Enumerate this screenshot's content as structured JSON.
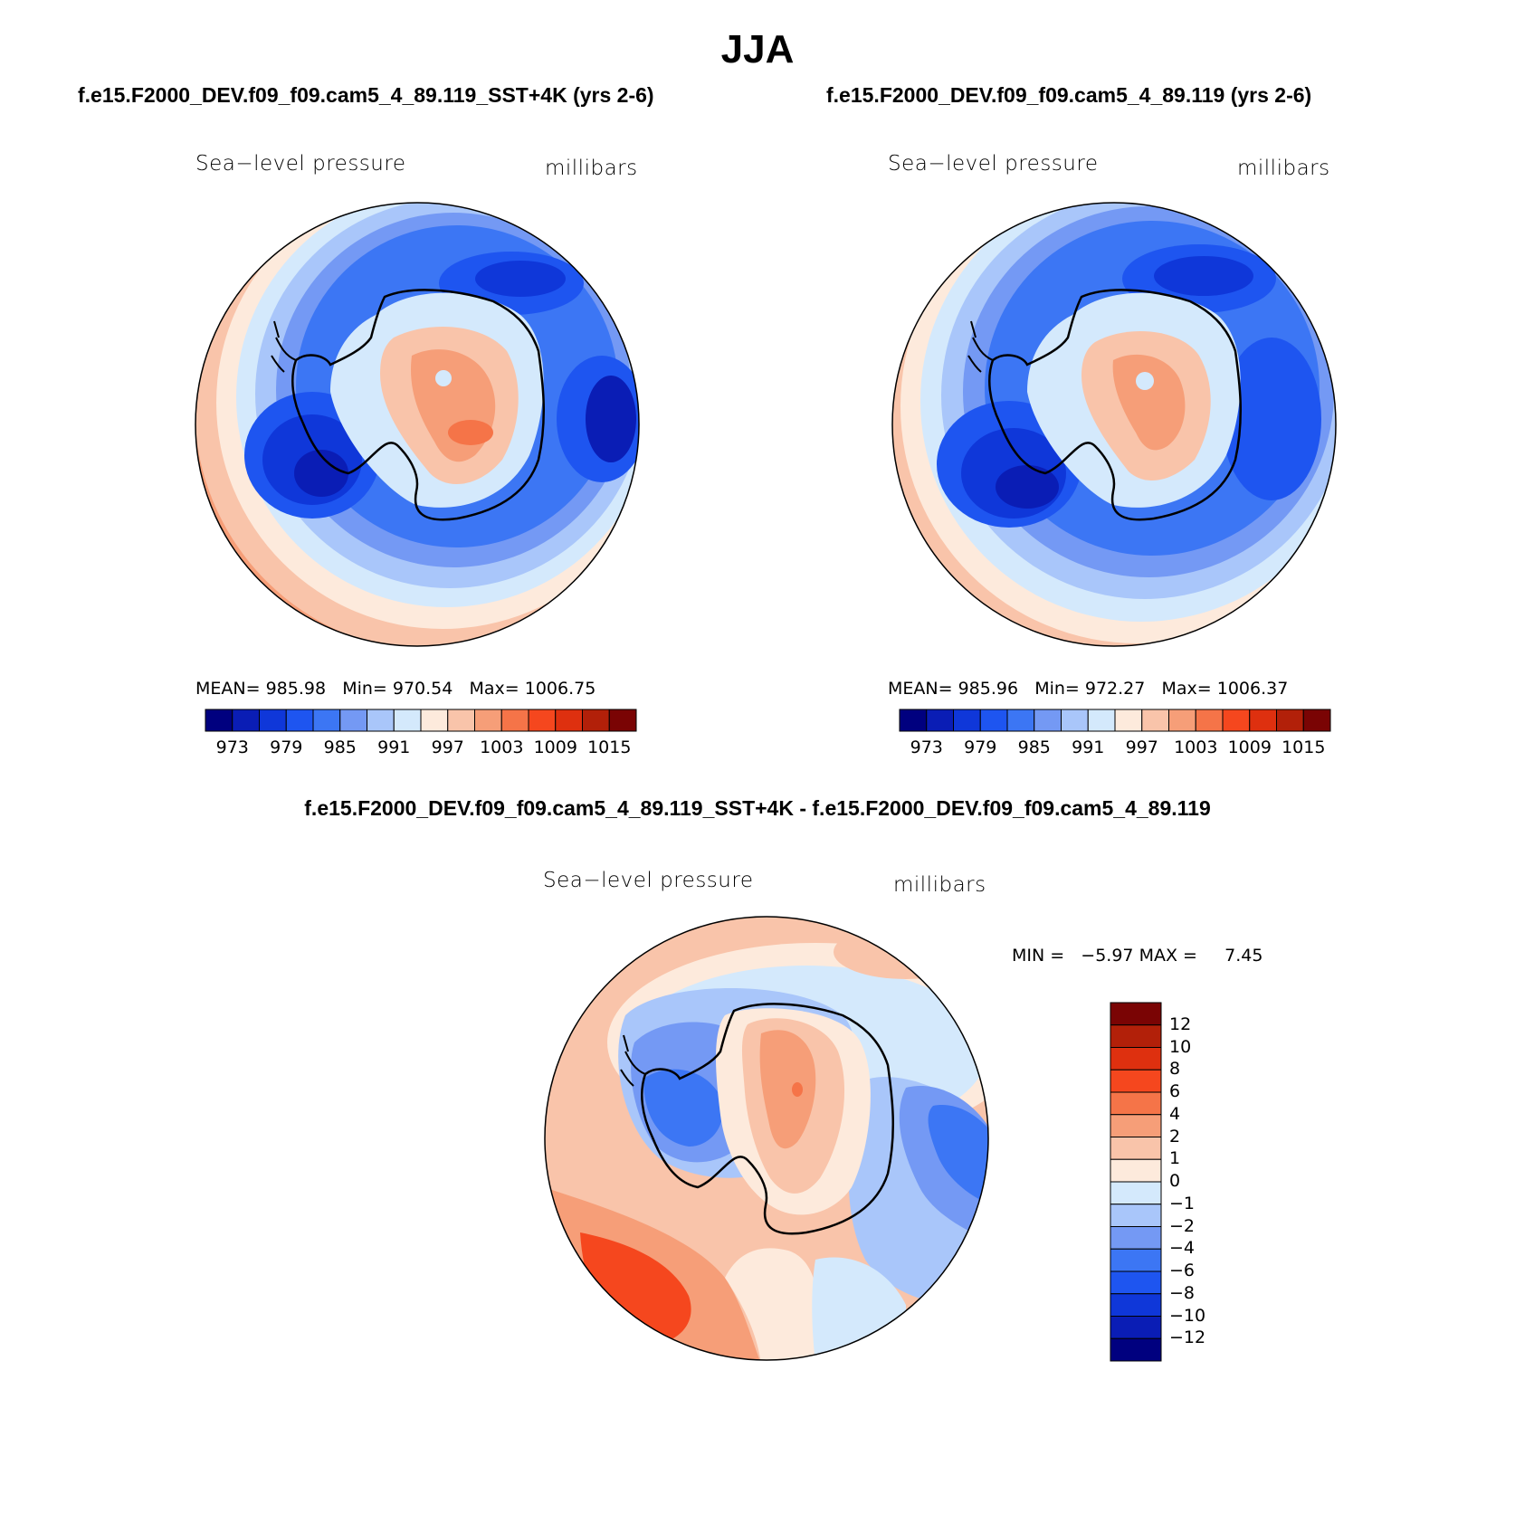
{
  "title": "JJA",
  "panels": [
    {
      "case_title": "f.e15.F2000_DEV.f09_f09.cam5_4_89.119_SST+4K (yrs 2-6)",
      "variable": "Sea−level pressure",
      "units": "millibars",
      "stats": {
        "mean_label": "MEAN=",
        "mean": "985.98",
        "min_label": "Min=",
        "min": "970.54",
        "max_label": "Max=",
        "max": "1006.75"
      }
    },
    {
      "case_title": "f.e15.F2000_DEV.f09_f09.cam5_4_89.119 (yrs 2-6)",
      "variable": "Sea−level pressure",
      "units": "millibars",
      "stats": {
        "mean_label": "MEAN=",
        "mean": "985.96",
        "min_label": "Min=",
        "min": "972.27",
        "max_label": "Max=",
        "max": "1006.37"
      }
    }
  ],
  "abs_colorbar": {
    "colors": [
      "#00007f",
      "#0a1db5",
      "#0f37d9",
      "#1e55f0",
      "#3c76f4",
      "#7499f4",
      "#a9c6fa",
      "#d4e9fc",
      "#fdeadc",
      "#f9c4aa",
      "#f69e78",
      "#f57448",
      "#f5471e",
      "#de300f",
      "#b22009",
      "#7a0404"
    ],
    "labels": [
      "973",
      "979",
      "985",
      "991",
      "997",
      "1003",
      "1009",
      "1015"
    ]
  },
  "diff": {
    "title": "f.e15.F2000_DEV.f09_f09.cam5_4_89.119_SST+4K - f.e15.F2000_DEV.f09_f09.cam5_4_89.119",
    "variable": "Sea−level pressure",
    "units": "millibars",
    "stats": {
      "min_label": "MIN =",
      "min": "−5.97",
      "max_label": "MAX =",
      "max": "7.45"
    },
    "colorbar": {
      "colors": [
        "#7a0404",
        "#b22009",
        "#de300f",
        "#f5471e",
        "#f57448",
        "#f69e78",
        "#f9c4aa",
        "#fdeadc",
        "#d4e9fc",
        "#a9c6fa",
        "#7499f4",
        "#3c76f4",
        "#1e55f0",
        "#0f37d9",
        "#0a1db5",
        "#00007f"
      ],
      "labels": [
        "12",
        "10",
        "8",
        "6",
        "4",
        "2",
        "1",
        "0",
        "−1",
        "−2",
        "−4",
        "−6",
        "−8",
        "−10",
        "−12"
      ]
    }
  }
}
